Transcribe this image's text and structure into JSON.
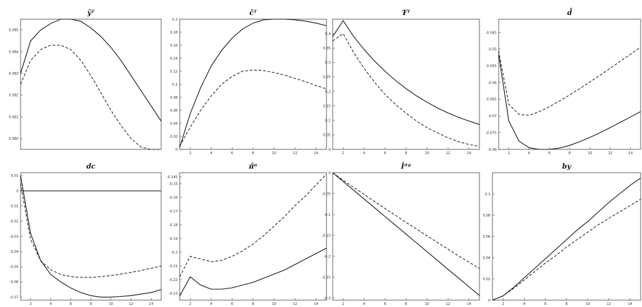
{
  "figure": {
    "description_colors": {
      "line": "#1a1a1a",
      "frame": "#444444",
      "background": "#ffffff"
    }
  },
  "chart_data": [
    {
      "type": "line",
      "title": "ŷᵀ",
      "xlim": [
        1,
        15
      ],
      "ylim": [
        0.0795,
        0.0855
      ],
      "xticks": [],
      "yticks": [
        0.08,
        0.081,
        0.082,
        0.083,
        0.084,
        0.085
      ],
      "ytick_labels": [
        "0.080",
        "0.081",
        "0.082",
        "0.083",
        "0.084",
        "0.085"
      ],
      "grid": false,
      "series": [
        {
          "style": "solid",
          "x": [
            1,
            2,
            3,
            4,
            5,
            6,
            7,
            8,
            9,
            10,
            11,
            12,
            13,
            14,
            15
          ],
          "values": [
            0.083,
            0.0845,
            0.085,
            0.0853,
            0.0855,
            0.0855,
            0.0854,
            0.0851,
            0.0847,
            0.0842,
            0.0836,
            0.0829,
            0.0822,
            0.0815,
            0.0808
          ]
        },
        {
          "style": "dashed",
          "x": [
            1,
            2,
            3,
            4,
            5,
            6,
            7,
            8,
            9,
            10,
            11,
            12,
            13,
            14,
            15
          ],
          "values": [
            0.0825,
            0.0836,
            0.0841,
            0.0843,
            0.0843,
            0.0841,
            0.0836,
            0.0829,
            0.0821,
            0.0813,
            0.0806,
            0.08,
            0.0796,
            0.0795,
            0.0795
          ]
        }
      ]
    },
    {
      "type": "line",
      "title": "ĉᵀ",
      "xlim": [
        1,
        15
      ],
      "ylim": [
        0,
        0.2
      ],
      "xticks": [
        2,
        4,
        6,
        8,
        10,
        12,
        14
      ],
      "yticks": [
        0,
        0.02,
        0.04,
        0.06,
        0.08,
        0.1,
        0.12,
        0.14,
        0.16,
        0.18,
        0.2
      ],
      "ytick_labels": [
        "0",
        "0.02",
        "0.04",
        "0.06",
        "0.08",
        "0.1",
        "0.12",
        "0.14",
        "0.16",
        "0.18",
        "0.2"
      ],
      "grid": false,
      "series": [
        {
          "style": "solid",
          "x": [
            1,
            2,
            3,
            4,
            5,
            6,
            7,
            8,
            9,
            10,
            11,
            12,
            13,
            14,
            15
          ],
          "values": [
            0.003,
            0.055,
            0.095,
            0.128,
            0.152,
            0.171,
            0.185,
            0.194,
            0.199,
            0.2,
            0.2,
            0.199,
            0.197,
            0.194,
            0.19
          ]
        },
        {
          "style": "dashed",
          "x": [
            1,
            2,
            3,
            4,
            5,
            6,
            7,
            8,
            9,
            10,
            11,
            12,
            13,
            14,
            15
          ],
          "values": [
            0.005,
            0.034,
            0.06,
            0.082,
            0.1,
            0.112,
            0.12,
            0.122,
            0.121,
            0.118,
            0.114,
            0.109,
            0.104,
            0.098,
            0.093
          ]
        }
      ]
    },
    {
      "type": "line",
      "title": "Ŧᵀ",
      "xlim": [
        1,
        15
      ],
      "ylim": [
        0,
        0.45
      ],
      "xticks": [
        2,
        4,
        6,
        8,
        10,
        12,
        14
      ],
      "yticks": [
        0,
        0.05,
        0.1,
        0.15,
        0.2,
        0.25,
        0.3,
        0.35,
        0.4
      ],
      "ytick_labels": [
        "0",
        "0.05",
        "0.1",
        "0.15",
        "0.2",
        "0.25",
        "0.3",
        "0.35",
        "0.4"
      ],
      "grid": false,
      "series": [
        {
          "style": "solid",
          "x": [
            1,
            2,
            3,
            4,
            5,
            6,
            7,
            8,
            9,
            10,
            11,
            12,
            13,
            14,
            15
          ],
          "values": [
            0.39,
            0.445,
            0.39,
            0.345,
            0.305,
            0.27,
            0.238,
            0.21,
            0.185,
            0.163,
            0.143,
            0.126,
            0.111,
            0.098,
            0.086
          ]
        },
        {
          "style": "dashed",
          "x": [
            1,
            2,
            3,
            4,
            5,
            6,
            7,
            8,
            9,
            10,
            11,
            12,
            13,
            14,
            15
          ],
          "values": [
            0.375,
            0.4,
            0.335,
            0.28,
            0.232,
            0.19,
            0.155,
            0.125,
            0.098,
            0.075,
            0.057,
            0.04,
            0.027,
            0.017,
            0.01
          ]
        }
      ]
    },
    {
      "type": "line",
      "title": "d̂",
      "xlim": [
        1,
        15
      ],
      "ylim": [
        -0.08,
        -0.041
      ],
      "xticks": [
        2,
        4,
        6,
        8,
        10,
        12,
        14
      ],
      "yticks": [
        -0.08,
        -0.075,
        -0.07,
        -0.065,
        -0.06,
        -0.055,
        -0.05,
        -0.045
      ],
      "ytick_labels": [
        "-0.08",
        "-0.075",
        "-0.07",
        "-0.065",
        "-0.06",
        "-0.055",
        "-0.05",
        "-0.045"
      ],
      "grid": false,
      "series": [
        {
          "style": "solid",
          "x": [
            1,
            2,
            3,
            4,
            5,
            6,
            7,
            8,
            9,
            10,
            11,
            12,
            13,
            14,
            15
          ],
          "values": [
            -0.0515,
            -0.0715,
            -0.0775,
            -0.0795,
            -0.08,
            -0.08,
            -0.0796,
            -0.0788,
            -0.0777,
            -0.0764,
            -0.075,
            -0.0735,
            -0.0719,
            -0.0703,
            -0.0687
          ]
        },
        {
          "style": "dashed",
          "x": [
            1,
            2,
            3,
            4,
            5,
            6,
            7,
            8,
            9,
            10,
            11,
            12,
            13,
            14,
            15
          ],
          "values": [
            -0.0505,
            -0.0665,
            -0.0695,
            -0.0698,
            -0.0687,
            -0.0672,
            -0.0655,
            -0.0637,
            -0.0618,
            -0.0598,
            -0.0578,
            -0.0557,
            -0.0536,
            -0.0515,
            -0.0494
          ]
        }
      ]
    },
    {
      "type": "line",
      "title": "dc",
      "xlim": [
        1,
        15
      ],
      "ylim": [
        -0.072,
        0.012
      ],
      "xticks": [
        2,
        4,
        6,
        8,
        10,
        12,
        14
      ],
      "yticks": [
        0.01,
        0,
        -0.01,
        -0.02,
        -0.03,
        -0.04,
        -0.05,
        -0.06,
        -0.07
      ],
      "ytick_labels": [
        "0.01",
        "0",
        "-0.01",
        "-0.02",
        "-0.03",
        "-0.04",
        "-0.05",
        "-0.06",
        "-0.07"
      ],
      "grid": false,
      "series": [
        {
          "style": "solid",
          "x": [
            1,
            2,
            3,
            4,
            5,
            6,
            7,
            8,
            9,
            10,
            11,
            12,
            13,
            14,
            15
          ],
          "values": [
            0.01,
            -0.028,
            -0.046,
            -0.055,
            -0.06,
            -0.064,
            -0.067,
            -0.069,
            -0.07,
            -0.07,
            -0.0695,
            -0.069,
            -0.068,
            -0.067,
            -0.065
          ]
        },
        {
          "style": "dashed",
          "x": [
            1,
            2,
            3,
            4,
            5,
            6,
            7,
            8,
            9,
            10,
            11,
            12,
            13,
            14,
            15
          ],
          "values": [
            0.005,
            -0.032,
            -0.046,
            -0.052,
            -0.055,
            -0.0565,
            -0.057,
            -0.057,
            -0.0565,
            -0.0558,
            -0.0548,
            -0.0537,
            -0.0524,
            -0.051,
            -0.0495
          ]
        },
        {
          "style": "zero",
          "x": [
            1,
            15
          ],
          "values": [
            0,
            0
          ]
        }
      ]
    },
    {
      "type": "line",
      "title": "π̂ᵅ",
      "xlim": [
        1,
        15
      ],
      "ylim": [
        -0.235,
        -0.142
      ],
      "xticks": [
        2,
        4,
        6,
        8,
        10,
        12,
        14
      ],
      "yticks": [
        -0.145,
        -0.15,
        -0.16,
        -0.17,
        -0.18,
        -0.19,
        -0.2,
        -0.21,
        -0.22,
        -0.23
      ],
      "ytick_labels": [
        "-0.145",
        "-0.15",
        "-0.16",
        "-0.17",
        "-0.18",
        "-0.19",
        "-0.2",
        "-0.21",
        "-0.22",
        "-0.23"
      ],
      "grid": false,
      "series": [
        {
          "style": "solid",
          "x": [
            1,
            2,
            3,
            4,
            5,
            6,
            7,
            8,
            9,
            10,
            11,
            12,
            13,
            14,
            15
          ],
          "values": [
            -0.232,
            -0.218,
            -0.224,
            -0.227,
            -0.227,
            -0.226,
            -0.224,
            -0.222,
            -0.219,
            -0.216,
            -0.213,
            -0.209,
            -0.205,
            -0.201,
            -0.197
          ]
        },
        {
          "style": "dashed",
          "x": [
            1,
            2,
            3,
            4,
            5,
            6,
            7,
            8,
            9,
            10,
            11,
            12,
            13,
            14,
            15
          ],
          "values": [
            -0.218,
            -0.203,
            -0.205,
            -0.207,
            -0.206,
            -0.203,
            -0.199,
            -0.194,
            -0.188,
            -0.181,
            -0.174,
            -0.166,
            -0.159,
            -0.151,
            -0.143
          ]
        }
      ]
    },
    {
      "type": "line",
      "title": "Îᵈᵍ",
      "xlim": [
        1,
        15
      ],
      "ylim": [
        -0.305,
        0.0
      ],
      "xticks": [
        2,
        4,
        6,
        8,
        10,
        12,
        14
      ],
      "yticks": [
        0,
        -0.05,
        -0.1,
        -0.15,
        -0.2,
        -0.25,
        -0.3
      ],
      "ytick_labels": [
        "0",
        "-0.05",
        "-0.1",
        "-0.15",
        "-0.2",
        "-0.25",
        "-0.3"
      ],
      "grid": false,
      "series": [
        {
          "style": "solid",
          "x": [
            1,
            2,
            3,
            4,
            5,
            6,
            7,
            8,
            9,
            10,
            11,
            12,
            13,
            14,
            15
          ],
          "values": [
            0,
            -0.021,
            -0.042,
            -0.063,
            -0.084,
            -0.105,
            -0.126,
            -0.147,
            -0.168,
            -0.189,
            -0.21,
            -0.231,
            -0.252,
            -0.273,
            -0.294
          ]
        },
        {
          "style": "dashed",
          "x": [
            1,
            2,
            3,
            4,
            5,
            6,
            7,
            8,
            9,
            10,
            11,
            12,
            13,
            14,
            15
          ],
          "values": [
            0,
            -0.018,
            -0.035,
            -0.052,
            -0.069,
            -0.086,
            -0.102,
            -0.119,
            -0.135,
            -0.151,
            -0.167,
            -0.183,
            -0.199,
            -0.214,
            -0.229
          ]
        }
      ]
    },
    {
      "type": "line",
      "title": "by",
      "xlim": [
        1,
        15
      ],
      "ylim": [
        0,
        0.12
      ],
      "xticks": [
        2,
        4,
        6,
        8,
        10,
        12,
        14
      ],
      "yticks": [
        0,
        0.02,
        0.04,
        0.06,
        0.08,
        0.1
      ],
      "ytick_labels": [
        "0",
        "0.02",
        "0.04",
        "0.06",
        "0.08",
        "0.1"
      ],
      "grid": false,
      "series": [
        {
          "style": "solid",
          "x": [
            1,
            2,
            3,
            4,
            5,
            6,
            7,
            8,
            9,
            10,
            11,
            12,
            13,
            14,
            15
          ],
          "values": [
            0,
            0.004,
            0.012,
            0.021,
            0.03,
            0.039,
            0.048,
            0.057,
            0.066,
            0.074,
            0.083,
            0.092,
            0.1,
            0.108,
            0.115
          ]
        },
        {
          "style": "dashed",
          "x": [
            1,
            2,
            3,
            4,
            5,
            6,
            7,
            8,
            9,
            10,
            11,
            12,
            13,
            14,
            15
          ],
          "values": [
            0,
            0.004,
            0.011,
            0.019,
            0.027,
            0.035,
            0.042,
            0.05,
            0.057,
            0.064,
            0.071,
            0.077,
            0.083,
            0.089,
            0.095
          ]
        }
      ]
    }
  ]
}
